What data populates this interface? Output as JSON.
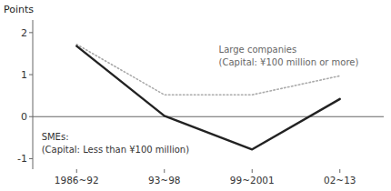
{
  "chart_data": {
    "type": "line",
    "y_label": "Points",
    "categories": [
      "1986~92",
      "93~98",
      "99~2001",
      "02~13"
    ],
    "series": [
      {
        "color": "#aaaaaa",
        "line_style": "dotted",
        "values": [
          1.72,
          0.52,
          0.52,
          0.97
        ]
      },
      {
        "color": "#222222",
        "line_style": "solid",
        "values": [
          1.68,
          0.02,
          -0.78,
          0.42
        ]
      }
    ],
    "annotations": [
      "Large companies",
      "(Capital: ¥100 million or more)",
      "SMEs:",
      "(Capital: Less than ¥100 million)"
    ],
    "ylim": [
      -1.25,
      2.3
    ],
    "yticks": [
      -1,
      0,
      1,
      2
    ],
    "grid": false
  }
}
